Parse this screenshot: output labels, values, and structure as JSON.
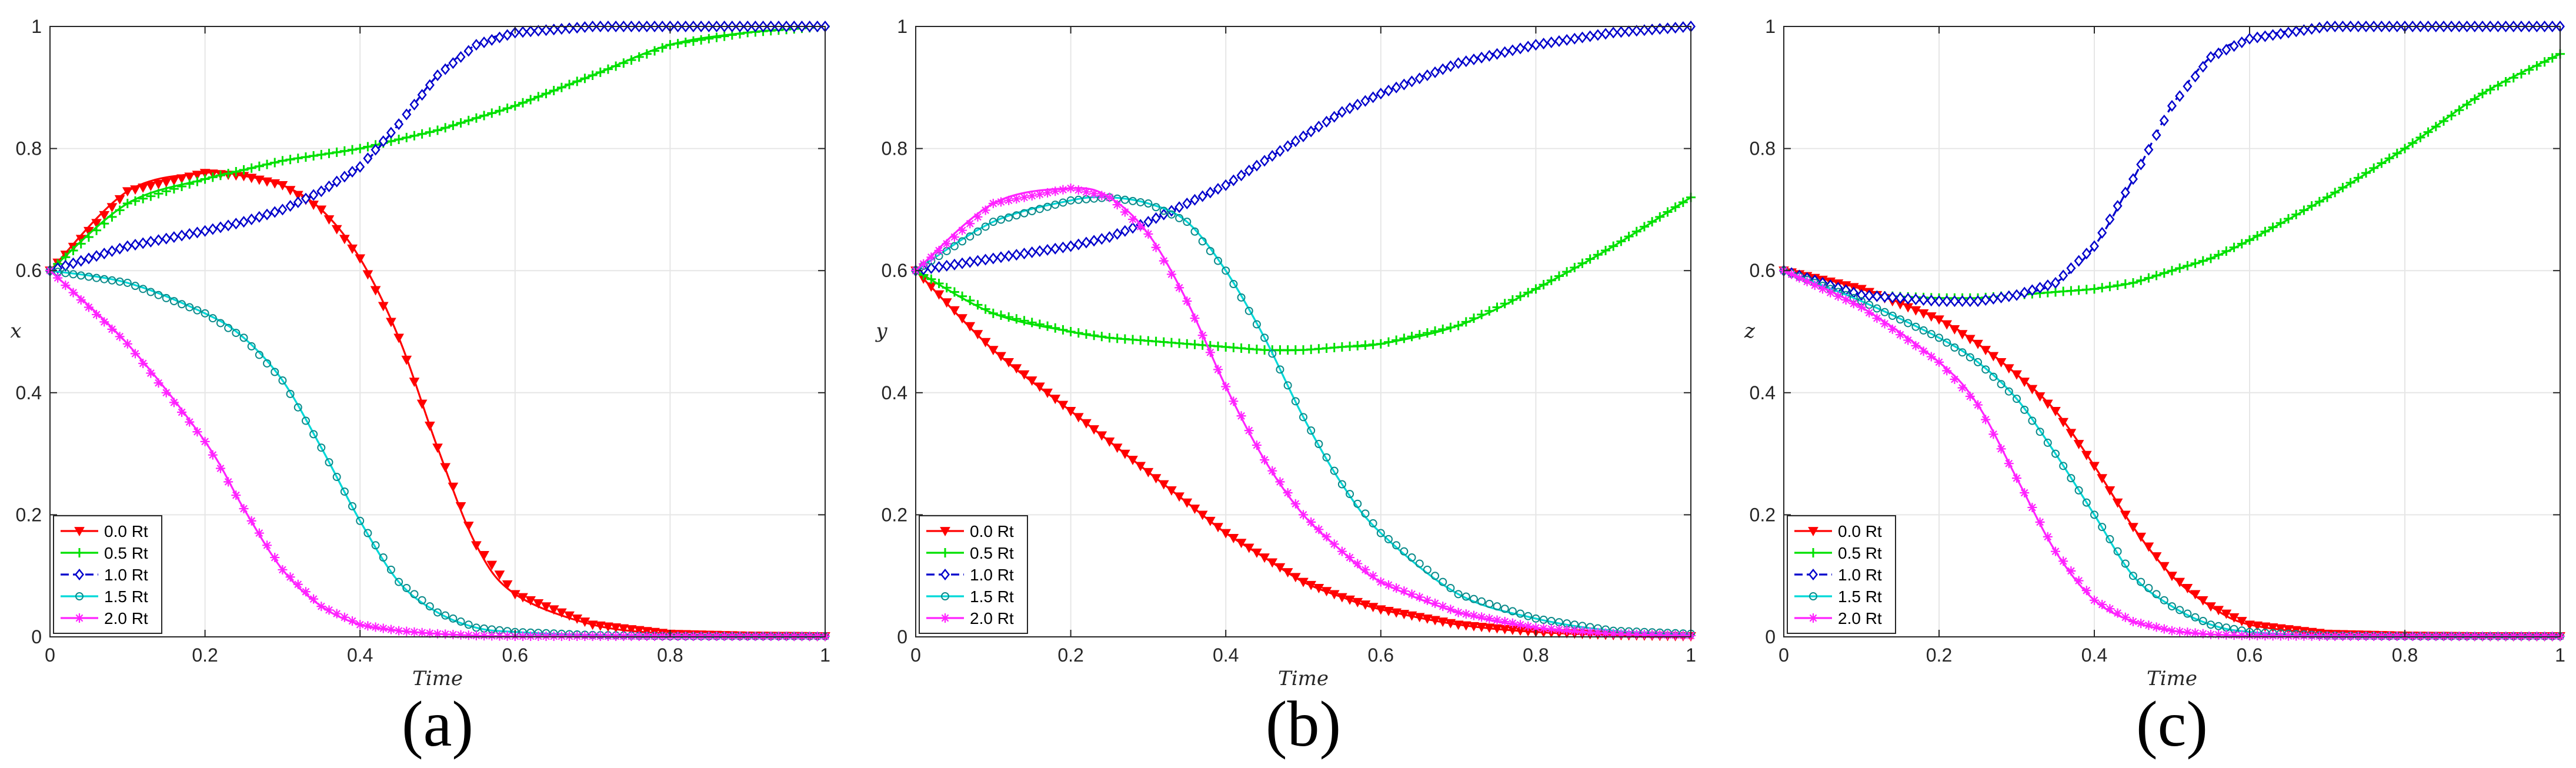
{
  "colors": {
    "s00": "#ff0000",
    "s05": "#00e000",
    "s10": "#0000cc",
    "s15": "#00e5e5",
    "s20": "#ff22ff",
    "grid": "#e6e6e6",
    "axis": "#262626"
  },
  "chart_data": [
    {
      "type": "line",
      "panel_label": "(a)",
      "xlabel": "Time",
      "ylabel": "x",
      "xlim": [
        0,
        1
      ],
      "ylim": [
        0,
        1
      ],
      "xticks": [
        "0",
        "0.2",
        "0.4",
        "0.6",
        "0.8",
        "1"
      ],
      "yticks": [
        "0",
        "0.2",
        "0.4",
        "0.6",
        "0.8",
        "1"
      ],
      "grid": true,
      "legend_position": "bottom-left",
      "x": [
        0,
        0.1,
        0.2,
        0.25,
        0.3,
        0.35,
        0.4,
        0.45,
        0.5,
        0.55,
        0.6,
        0.7,
        0.8,
        0.9,
        1.0
      ],
      "series": [
        {
          "name": "0.0 Rt",
          "color_key": "s00",
          "marker": "triangle-down",
          "values": [
            0.6,
            0.73,
            0.76,
            0.755,
            0.74,
            0.7,
            0.62,
            0.49,
            0.31,
            0.15,
            0.07,
            0.02,
            0.005,
            0.002,
            0.001
          ]
        },
        {
          "name": "0.5 Rt",
          "color_key": "s05",
          "marker": "plus",
          "values": [
            0.6,
            0.71,
            0.75,
            0.765,
            0.78,
            0.79,
            0.8,
            0.815,
            0.83,
            0.85,
            0.87,
            0.92,
            0.97,
            0.99,
            1.0
          ]
        },
        {
          "name": "1.0 Rt",
          "color_key": "s10",
          "marker": "diamond",
          "dashed": true,
          "values": [
            0.6,
            0.64,
            0.665,
            0.68,
            0.7,
            0.73,
            0.77,
            0.84,
            0.92,
            0.97,
            0.99,
            1.0,
            1.0,
            1.0,
            1.0
          ]
        },
        {
          "name": "1.5 Rt",
          "color_key": "s15",
          "marker": "circle",
          "values": [
            0.6,
            0.58,
            0.53,
            0.49,
            0.42,
            0.31,
            0.19,
            0.09,
            0.04,
            0.015,
            0.008,
            0.003,
            0.001,
            0.001,
            0.001
          ]
        },
        {
          "name": "2.0 Rt",
          "color_key": "s20",
          "marker": "asterisk",
          "values": [
            0.6,
            0.48,
            0.32,
            0.21,
            0.11,
            0.05,
            0.02,
            0.01,
            0.005,
            0.002,
            0.001,
            0.001,
            0.001,
            0.001,
            0.001
          ]
        }
      ]
    },
    {
      "type": "line",
      "panel_label": "(b)",
      "xlabel": "Time",
      "ylabel": "y",
      "xlim": [
        0,
        1
      ],
      "ylim": [
        0,
        1
      ],
      "xticks": [
        "0",
        "0.2",
        "0.4",
        "0.6",
        "0.8",
        "1"
      ],
      "yticks": [
        "0",
        "0.2",
        "0.4",
        "0.6",
        "0.8",
        "1"
      ],
      "grid": true,
      "legend_position": "bottom-left",
      "x": [
        0,
        0.1,
        0.2,
        0.25,
        0.3,
        0.35,
        0.4,
        0.45,
        0.5,
        0.55,
        0.6,
        0.7,
        0.8,
        0.9,
        1.0
      ],
      "series": [
        {
          "name": "0.0 Rt",
          "color_key": "s00",
          "marker": "triangle-down",
          "values": [
            0.6,
            0.47,
            0.37,
            0.32,
            0.27,
            0.22,
            0.17,
            0.13,
            0.09,
            0.065,
            0.045,
            0.02,
            0.008,
            0.003,
            0.001
          ]
        },
        {
          "name": "0.5 Rt",
          "color_key": "s05",
          "marker": "plus",
          "values": [
            0.6,
            0.53,
            0.5,
            0.49,
            0.485,
            0.48,
            0.475,
            0.47,
            0.47,
            0.475,
            0.48,
            0.51,
            0.57,
            0.64,
            0.72
          ]
        },
        {
          "name": "1.0 Rt",
          "color_key": "s10",
          "marker": "diamond",
          "dashed": true,
          "values": [
            0.6,
            0.62,
            0.64,
            0.655,
            0.68,
            0.71,
            0.74,
            0.78,
            0.82,
            0.86,
            0.89,
            0.94,
            0.97,
            0.99,
            1.0
          ]
        },
        {
          "name": "1.5 Rt",
          "color_key": "s15",
          "marker": "circle",
          "values": [
            0.6,
            0.68,
            0.715,
            0.72,
            0.71,
            0.68,
            0.6,
            0.49,
            0.36,
            0.25,
            0.17,
            0.07,
            0.03,
            0.01,
            0.005
          ]
        },
        {
          "name": "2.0 Rt",
          "color_key": "s20",
          "marker": "asterisk",
          "values": [
            0.6,
            0.71,
            0.735,
            0.72,
            0.66,
            0.55,
            0.41,
            0.29,
            0.2,
            0.14,
            0.09,
            0.04,
            0.015,
            0.005,
            0.002
          ]
        }
      ]
    },
    {
      "type": "line",
      "panel_label": "(c)",
      "xlabel": "Time",
      "ylabel": "z",
      "xlim": [
        0,
        1
      ],
      "ylim": [
        0,
        1
      ],
      "xticks": [
        "0",
        "0.2",
        "0.4",
        "0.6",
        "0.8",
        "1"
      ],
      "yticks": [
        "0",
        "0.2",
        "0.4",
        "0.6",
        "0.8",
        "1"
      ],
      "grid": true,
      "legend_position": "bottom-left",
      "x": [
        0,
        0.1,
        0.2,
        0.25,
        0.3,
        0.35,
        0.4,
        0.45,
        0.5,
        0.55,
        0.6,
        0.7,
        0.8,
        0.9,
        1.0
      ],
      "series": [
        {
          "name": "0.0 Rt",
          "color_key": "s00",
          "marker": "triangle-down",
          "values": [
            0.6,
            0.57,
            0.52,
            0.48,
            0.43,
            0.37,
            0.28,
            0.18,
            0.1,
            0.05,
            0.02,
            0.005,
            0.002,
            0.001,
            0.001
          ]
        },
        {
          "name": "0.5 Rt",
          "color_key": "s05",
          "marker": "plus",
          "values": [
            0.6,
            0.56,
            0.555,
            0.555,
            0.56,
            0.565,
            0.57,
            0.58,
            0.6,
            0.62,
            0.65,
            0.72,
            0.8,
            0.89,
            0.955
          ]
        },
        {
          "name": "1.0 Rt",
          "color_key": "s10",
          "marker": "diamond",
          "dashed": true,
          "values": [
            0.6,
            0.56,
            0.55,
            0.55,
            0.56,
            0.58,
            0.64,
            0.75,
            0.87,
            0.95,
            0.98,
            1.0,
            1.0,
            1.0,
            1.0
          ]
        },
        {
          "name": "1.5 Rt",
          "color_key": "s15",
          "marker": "circle",
          "values": [
            0.6,
            0.55,
            0.49,
            0.45,
            0.39,
            0.3,
            0.2,
            0.1,
            0.05,
            0.02,
            0.008,
            0.002,
            0.001,
            0.001,
            0.001
          ]
        },
        {
          "name": "2.0 Rt",
          "color_key": "s20",
          "marker": "asterisk",
          "values": [
            0.6,
            0.54,
            0.45,
            0.38,
            0.26,
            0.14,
            0.06,
            0.025,
            0.01,
            0.004,
            0.002,
            0.001,
            0.001,
            0.001,
            0.001
          ]
        }
      ]
    }
  ]
}
